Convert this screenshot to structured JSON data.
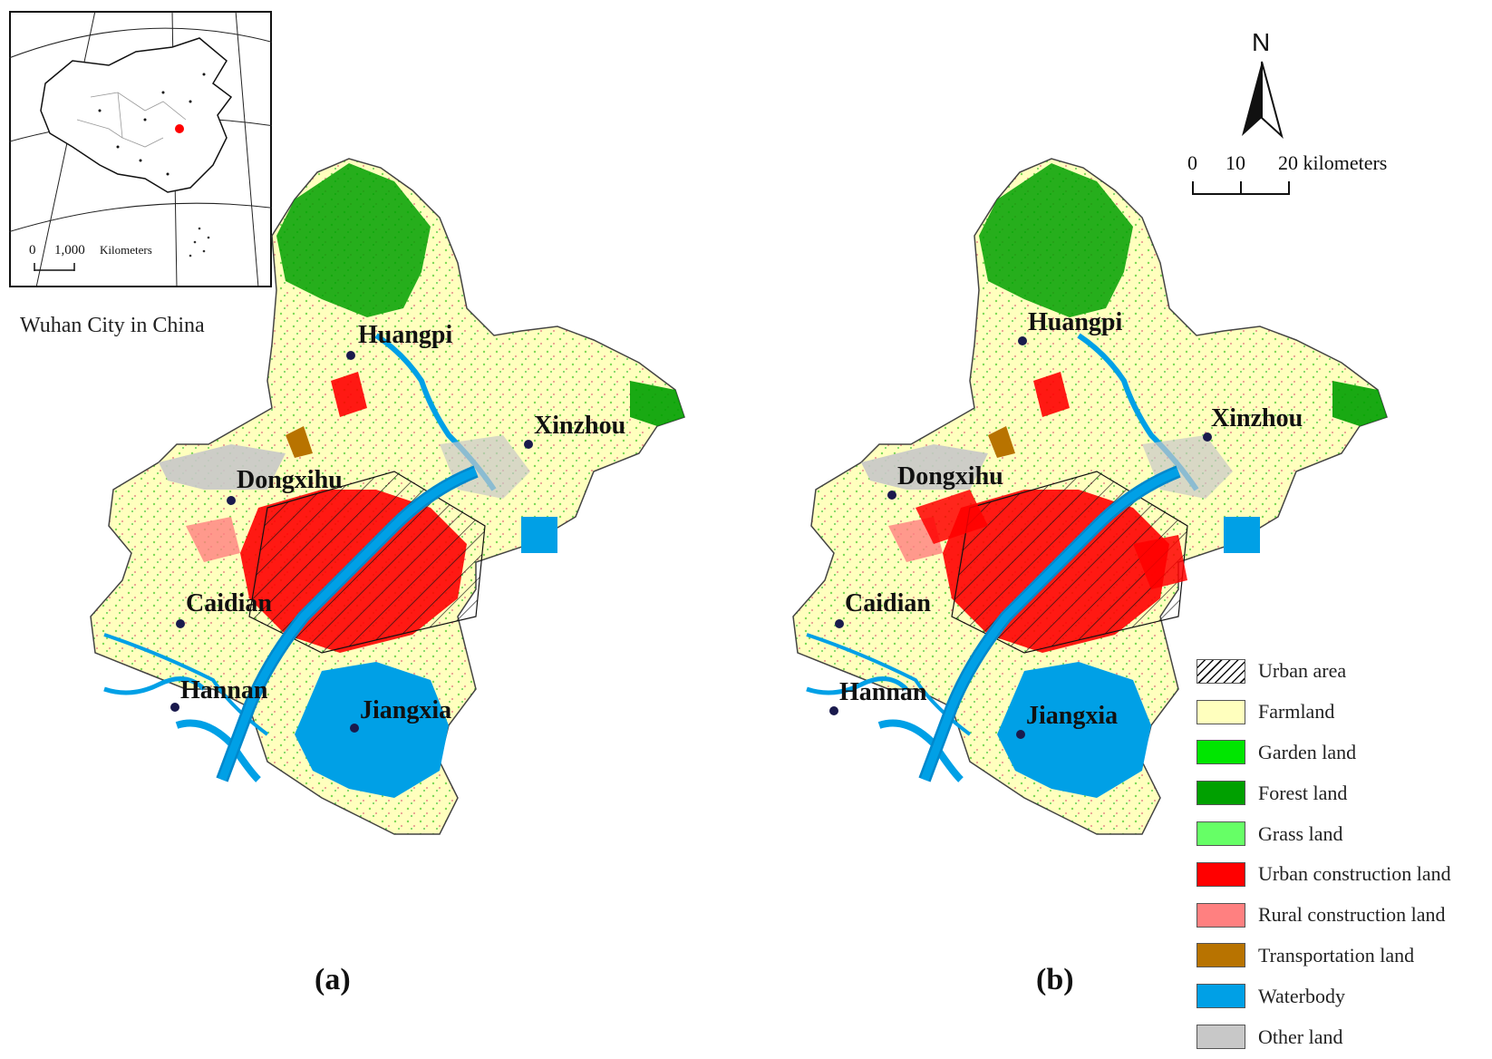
{
  "inset": {
    "scale_zero": "0",
    "scale_value": "1,000",
    "scale_unit": "Kilometers",
    "caption": "Wuhan City in China"
  },
  "north_arrow": {
    "label": "N"
  },
  "scalebar": {
    "ticks": [
      "0",
      "10",
      "20 kilometers"
    ]
  },
  "panels": [
    {
      "id": "a",
      "label": "(a)",
      "cities": [
        "Huangpi",
        "Xinzhou",
        "Dongxihu",
        "Caidian",
        "Hannan",
        "Jiangxia"
      ]
    },
    {
      "id": "b",
      "label": "(b)",
      "cities": [
        "Huangpi",
        "Xinzhou",
        "Dongxihu",
        "Caidian",
        "Hannan",
        "Jiangxia"
      ]
    }
  ],
  "legend": [
    {
      "label": "Urban area",
      "color": "hatch"
    },
    {
      "label": "Farmland",
      "color": "#FFFFBE"
    },
    {
      "label": "Garden land",
      "color": "#00E600"
    },
    {
      "label": "Forest land",
      "color": "#00A000"
    },
    {
      "label": "Grass land",
      "color": "#66FF66"
    },
    {
      "label": "Urban construction land",
      "color": "#FF0000"
    },
    {
      "label": "Rural construction land",
      "color": "#FF8080"
    },
    {
      "label": "Transportation land",
      "color": "#B87300"
    },
    {
      "label": "Waterbody",
      "color": "#00A0E6"
    },
    {
      "label": "Other land",
      "color": "#C8C8C8"
    }
  ]
}
